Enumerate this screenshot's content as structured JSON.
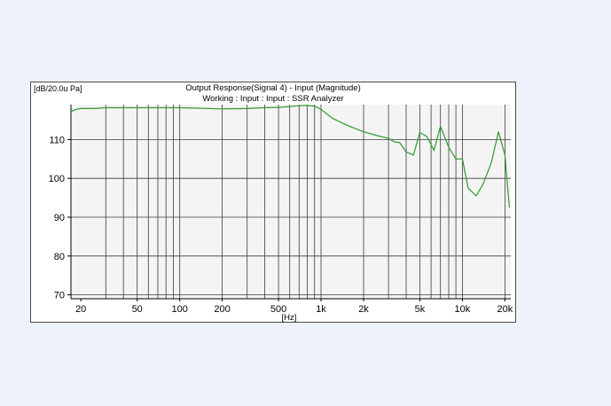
{
  "chart_data": {
    "type": "line",
    "unit_label": "[dB/20.0u Pa]",
    "title": "Output Response(Signal 4) - Input (Magnitude)",
    "subtitle": "Working : Input : Input : SSR Analyzer",
    "xlabel": "[Hz]",
    "x_scale": "log",
    "xlim": [
      17,
      22000
    ],
    "ylim": [
      69,
      119
    ],
    "x_ticks": [
      {
        "value": 20,
        "label": "20"
      },
      {
        "value": 50,
        "label": "50"
      },
      {
        "value": 100,
        "label": "100"
      },
      {
        "value": 200,
        "label": "200"
      },
      {
        "value": 500,
        "label": "500"
      },
      {
        "value": 1000,
        "label": "1k"
      },
      {
        "value": 2000,
        "label": "2k"
      },
      {
        "value": 5000,
        "label": "5k"
      },
      {
        "value": 10000,
        "label": "10k"
      },
      {
        "value": 20000,
        "label": "20k"
      }
    ],
    "y_ticks": [
      70,
      80,
      90,
      100,
      110
    ],
    "vertical_grid": [
      30,
      40,
      50,
      60,
      70,
      80,
      90,
      100,
      200,
      300,
      400,
      500,
      600,
      700,
      800,
      900,
      1000,
      2000,
      3000,
      4000,
      5000,
      6000,
      7000,
      8000,
      9000,
      10000,
      20000
    ],
    "grid": true,
    "series": [
      {
        "color": "#2f9a2f",
        "x": [
          17,
          18.5,
          20,
          25,
          30,
          50,
          100,
          200,
          300,
          400,
          500,
          600,
          700,
          800,
          900,
          1000,
          1200,
          1500,
          2000,
          2500,
          3000,
          3300,
          3600,
          4000,
          4500,
          5000,
          5600,
          6300,
          7000,
          8000,
          9000,
          10000,
          11000,
          12500,
          14000,
          16000,
          18000,
          20000,
          21500
        ],
        "y": [
          117.2,
          117.8,
          118.0,
          118.0,
          118.2,
          118.2,
          118.2,
          117.9,
          118.0,
          118.2,
          118.3,
          118.5,
          118.7,
          118.8,
          118.6,
          117.8,
          115.5,
          113.8,
          112.0,
          111.0,
          110.3,
          109.4,
          109.2,
          106.8,
          106.0,
          111.8,
          110.8,
          107.2,
          113.4,
          108.0,
          105.0,
          105.0,
          97.5,
          95.5,
          98.5,
          104.0,
          112.0,
          106.0,
          92.5
        ]
      }
    ]
  }
}
